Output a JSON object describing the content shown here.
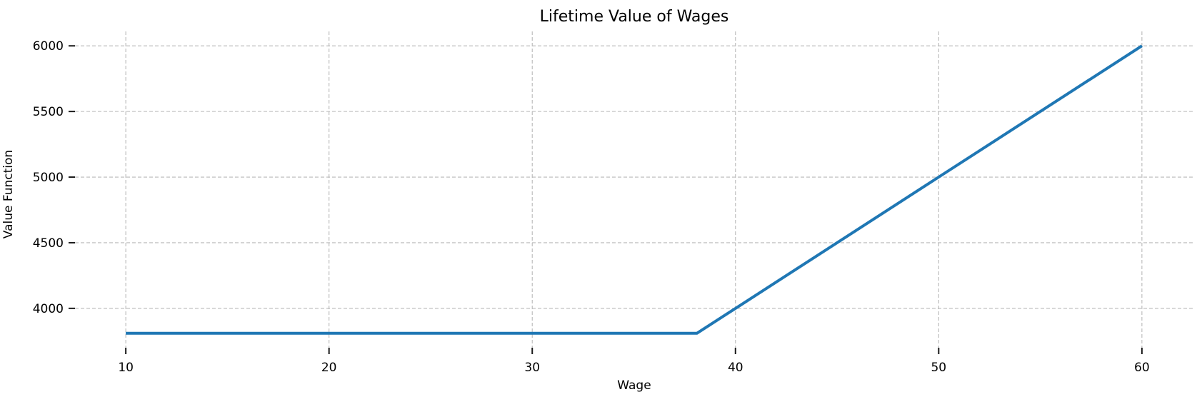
{
  "chart_data": {
    "type": "line",
    "title": "Lifetime Value of Wages",
    "xlabel": "Wage",
    "ylabel": "Value Function",
    "x_ticks": [
      10,
      20,
      30,
      40,
      50,
      60
    ],
    "y_ticks": [
      4000,
      4500,
      5000,
      5500,
      6000
    ],
    "xlim": [
      7.5,
      62.5
    ],
    "ylim": [
      3700,
      6110
    ],
    "grid": true,
    "grid_style": "dashed",
    "legend_position": "none",
    "series": [
      {
        "name": "value_function",
        "color": "#1f77b4",
        "points": [
          [
            10,
            3810
          ],
          [
            38.1,
            3810
          ],
          [
            40,
            4000
          ],
          [
            50,
            5000
          ],
          [
            60,
            6000
          ]
        ]
      }
    ],
    "key_features": {
      "flat_value": 3810,
      "kink_wage": 38.1,
      "slope_after_kink": 100,
      "end_point": [
        60,
        6000
      ]
    },
    "colors": {
      "line": "#1f77b4",
      "grid": "#b9b9b9",
      "tick": "#1a1a1a",
      "text": "#000000",
      "background": "#ffffff"
    }
  }
}
